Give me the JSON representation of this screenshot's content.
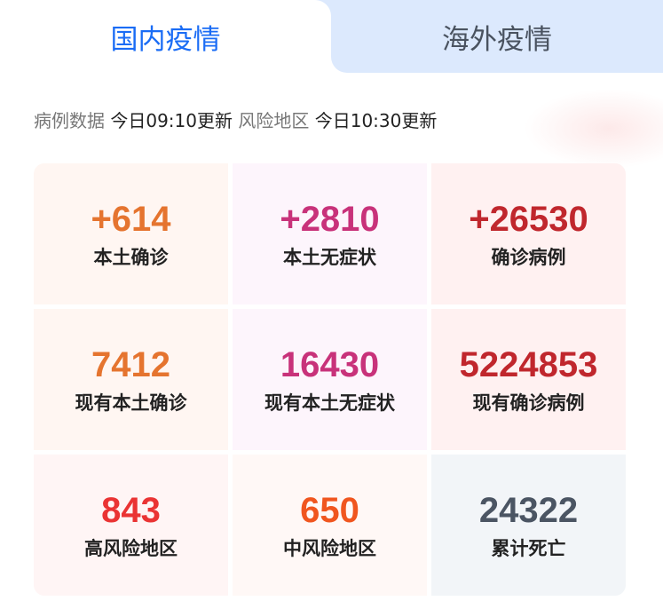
{
  "tabs": [
    {
      "label": "国内疫情",
      "active": true
    },
    {
      "label": "海外疫情",
      "active": false
    }
  ],
  "subtitle": {
    "case_label": "病例数据",
    "case_time": "今日09:10更新",
    "risk_label": "风险地区",
    "risk_time": "今日10:30更新"
  },
  "stats": [
    {
      "value": "+614",
      "label": "本土确诊",
      "color": "#e5742f",
      "bg": "#fff6f2"
    },
    {
      "value": "+2810",
      "label": "本土无症状",
      "color": "#c8327a",
      "bg": "#fdf5fc"
    },
    {
      "value": "+26530",
      "label": "确诊病例",
      "color": "#c0272d",
      "bg": "#fff1f1"
    },
    {
      "value": "7412",
      "label": "现有本土确诊",
      "color": "#e5742f",
      "bg": "#fff6f2"
    },
    {
      "value": "16430",
      "label": "现有本土无症状",
      "color": "#c8327a",
      "bg": "#fdf5fc"
    },
    {
      "value": "5224853",
      "label": "现有确诊病例",
      "color": "#c0272d",
      "bg": "#fff1f1"
    },
    {
      "value": "843",
      "label": "高风险地区",
      "color": "#ea3434",
      "bg": "#fff5f5"
    },
    {
      "value": "650",
      "label": "中风险地区",
      "color": "#f0561f",
      "bg": "#fff8f6"
    },
    {
      "value": "24322",
      "label": "累计死亡",
      "color": "#4b5563",
      "bg": "#f2f5f8"
    }
  ]
}
